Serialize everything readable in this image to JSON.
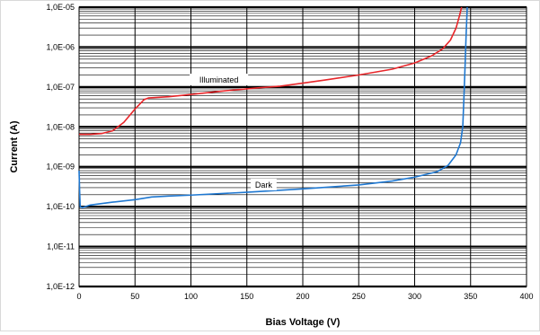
{
  "chart_data": {
    "type": "line",
    "xlabel": "Bias Voltage (V)",
    "ylabel": "Current (A)",
    "xlim": [
      0,
      400
    ],
    "ylim": [
      1e-12,
      1e-05
    ],
    "y_scale": "log",
    "grid": true,
    "x_ticks": [
      "0",
      "50",
      "100",
      "150",
      "200",
      "250",
      "300",
      "350",
      "400"
    ],
    "y_ticks": [
      "1,0E-12",
      "1,0E-11",
      "1,0E-10",
      "1,0E-09",
      "1,0E-08",
      "1,0E-07",
      "1,0E-06",
      "1,0E-05"
    ],
    "series": [
      {
        "name": "Illuminated",
        "color": "#e8262a",
        "label_at": [
          125,
          1.5e-07
        ],
        "points": [
          [
            0,
            6.5e-09
          ],
          [
            10,
            6.5e-09
          ],
          [
            20,
            6.8e-09
          ],
          [
            30,
            8e-09
          ],
          [
            40,
            1.3e-08
          ],
          [
            50,
            2.8e-08
          ],
          [
            58,
            4.8e-08
          ],
          [
            62,
            5.3e-08
          ],
          [
            70,
            5.5e-08
          ],
          [
            80,
            5.7e-08
          ],
          [
            100,
            6.5e-08
          ],
          [
            130,
            8e-08
          ],
          [
            160,
            9.5e-08
          ],
          [
            180,
            1.05e-07
          ],
          [
            200,
            1.25e-07
          ],
          [
            220,
            1.5e-07
          ],
          [
            250,
            2e-07
          ],
          [
            280,
            2.8e-07
          ],
          [
            300,
            4e-07
          ],
          [
            315,
            6e-07
          ],
          [
            325,
            9e-07
          ],
          [
            332,
            1.5e-06
          ],
          [
            337,
            3e-06
          ],
          [
            340,
            6e-06
          ],
          [
            342,
            1e-05
          ]
        ]
      },
      {
        "name": "Dark",
        "color": "#1f78d1",
        "label_at": [
          165,
          3.5e-10
        ],
        "points": [
          [
            0,
            8e-10
          ],
          [
            0.5,
            2.5e-10
          ],
          [
            1,
            1e-10
          ],
          [
            3,
            9.5e-11
          ],
          [
            10,
            1.1e-10
          ],
          [
            30,
            1.3e-10
          ],
          [
            50,
            1.5e-10
          ],
          [
            65,
            1.75e-10
          ],
          [
            80,
            1.85e-10
          ],
          [
            100,
            1.95e-10
          ],
          [
            150,
            2.3e-10
          ],
          [
            200,
            2.8e-10
          ],
          [
            250,
            3.5e-10
          ],
          [
            280,
            4.4e-10
          ],
          [
            300,
            5.5e-10
          ],
          [
            320,
            7.5e-10
          ],
          [
            330,
            1.1e-09
          ],
          [
            337,
            2e-09
          ],
          [
            341,
            4e-09
          ],
          [
            343,
            1e-08
          ],
          [
            344,
            5e-08
          ],
          [
            345,
            3e-07
          ],
          [
            346,
            2e-06
          ],
          [
            347,
            1e-05
          ]
        ]
      }
    ]
  }
}
